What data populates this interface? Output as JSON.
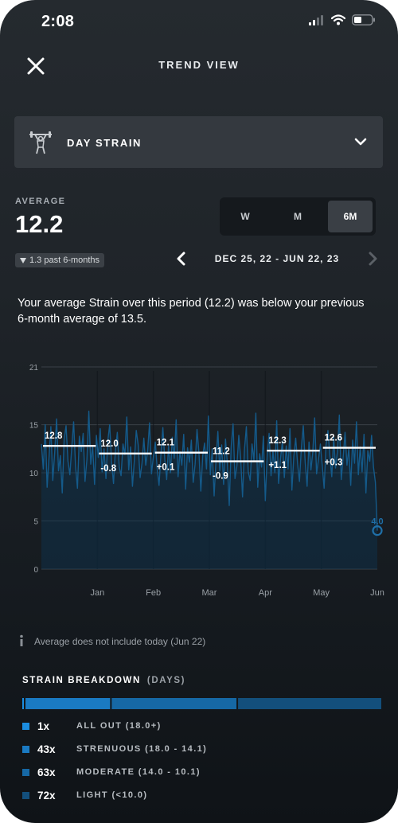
{
  "status": {
    "time": "2:08"
  },
  "header": {
    "title": "TREND VIEW"
  },
  "selector": {
    "label": "DAY STRAIN",
    "icon": "weightlifter-icon"
  },
  "average": {
    "label": "AVERAGE",
    "value": "12.2",
    "badge": "1.3 past 6-months",
    "direction": "down"
  },
  "periods": {
    "items": [
      "W",
      "M",
      "6M"
    ],
    "selected": "6M"
  },
  "range": {
    "text": "DEC 25, 22 - JUN 22, 23"
  },
  "summary": "Your average Strain over this period (12.2) was below your previous 6-month average of 13.5.",
  "chart_data": {
    "type": "line",
    "ylim": [
      0,
      21
    ],
    "yticks": [
      0,
      5,
      10,
      15,
      21
    ],
    "xticks": [
      "Jan",
      "Feb",
      "Mar",
      "Apr",
      "May",
      "Jun"
    ],
    "today_value": "4.0",
    "monthly": [
      {
        "avg": 12.8,
        "avg_label": "12.8",
        "delta": ""
      },
      {
        "avg": 12.0,
        "avg_label": "12.0",
        "delta": "-0.8"
      },
      {
        "avg": 12.1,
        "avg_label": "12.1",
        "delta": "+0.1"
      },
      {
        "avg": 11.2,
        "avg_label": "11.2",
        "delta": "-0.9"
      },
      {
        "avg": 12.3,
        "avg_label": "12.3",
        "delta": "+1.1"
      },
      {
        "avg": 12.6,
        "avg_label": "12.6",
        "delta": "+0.3"
      }
    ],
    "series": [
      {
        "values": [
          13.0,
          10.4,
          15.0,
          8.5,
          11.5,
          14.8,
          9.2,
          12.1,
          15.6,
          10.2,
          11.8,
          7.9,
          13.5,
          14.9,
          11.2,
          9.8,
          12.6,
          15.3,
          10.7,
          8.4,
          13.8,
          12.2,
          14.1,
          9.1,
          11.4,
          16.4,
          10.9,
          12.8,
          8.8,
          13.9,
          11.6,
          14.6,
          10.1,
          12.5,
          9.4,
          13.3,
          15.0,
          11.1,
          8.9,
          12.4,
          14.2,
          10.6,
          9.7,
          13.0,
          11.9,
          15.8,
          10.3,
          12.7,
          8.6,
          11.3,
          14.4,
          12.9,
          9.5,
          11.0,
          13.6,
          10.8,
          12.3,
          15.2,
          9.9,
          11.7,
          13.2,
          10.5,
          8.7,
          12.0,
          14.7,
          11.4,
          9.3,
          12.8,
          10.0,
          13.7,
          11.5,
          15.5,
          9.6,
          12.2,
          10.8,
          14.0,
          8.3,
          12.6,
          11.1,
          13.4,
          9.0,
          10.9,
          14.5,
          12.1,
          8.1,
          11.8,
          13.1,
          10.4,
          15.9,
          9.8,
          12.5,
          7.6,
          11.2,
          14.3,
          10.2,
          12.9,
          8.8,
          13.5,
          11.0,
          6.6,
          12.7,
          15.1,
          9.4,
          10.7,
          13.9,
          11.6,
          7.5,
          12.4,
          14.8,
          10.1,
          9.2,
          13.0,
          11.3,
          16.2,
          8.5,
          12.0,
          10.6,
          13.8,
          7.1,
          11.9,
          14.1,
          9.7,
          12.3,
          10.0,
          15.4,
          8.9,
          11.5,
          13.3,
          9.5,
          12.8,
          10.4,
          14.6,
          8.2,
          11.7,
          13.6,
          10.9,
          9.1,
          12.6,
          14.9,
          11.1,
          8.6,
          13.2,
          10.3,
          12.1,
          15.7,
          9.9,
          11.4,
          13.0,
          10.7,
          8.4,
          12.9,
          14.4,
          11.8,
          9.6,
          13.7,
          10.5,
          12.2,
          16.0,
          9.3,
          11.6,
          14.2,
          10.8,
          12.5,
          8.7,
          13.4,
          11.0,
          15.3,
          9.8,
          12.7,
          10.1,
          14.0,
          7.9,
          12.3,
          11.2,
          13.9,
          10.6,
          9.0,
          4.0
        ]
      }
    ]
  },
  "info": {
    "icon": "info-icon",
    "text": "Average does not include today (Jun 22)"
  },
  "breakdown": {
    "title": "STRAIN BREAKDOWN",
    "subtitle": "(DAYS)",
    "rows": [
      {
        "count": "1x",
        "label": "ALL OUT (18.0+)",
        "color": "#1b8de0",
        "days": 1
      },
      {
        "count": "43x",
        "label": "STRENUOUS (18.0 - 14.1)",
        "color": "#1a7ac2",
        "days": 43
      },
      {
        "count": "63x",
        "label": "MODERATE (14.0 - 10.1)",
        "color": "#1668a5",
        "days": 63
      },
      {
        "count": "72x",
        "label": "LIGHT (<10.0)",
        "color": "#134f7c",
        "days": 72
      }
    ]
  }
}
